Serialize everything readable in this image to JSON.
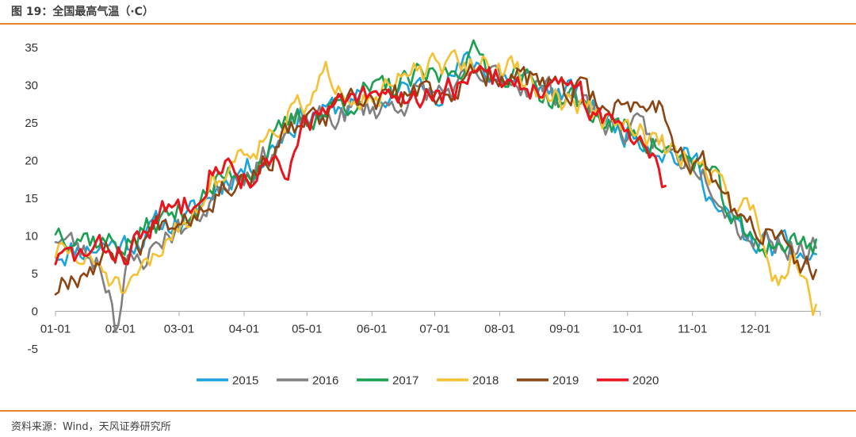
{
  "header": {
    "title": "图 19：全国最高气温（·C）"
  },
  "footer": {
    "source": "资料来源：Wind，天风证券研究所"
  },
  "chart_data": {
    "type": "line",
    "title": "图 19：全国最高气温（·C）",
    "xlabel": "",
    "ylabel": "",
    "x_ticks": [
      "01-01",
      "02-01",
      "03-01",
      "04-01",
      "05-01",
      "06-01",
      "07-01",
      "08-01",
      "09-01",
      "10-01",
      "11-01",
      "12-01"
    ],
    "y_ticks": [
      -5,
      0,
      5,
      10,
      15,
      20,
      25,
      30,
      35
    ],
    "ylim": [
      -5,
      35
    ],
    "xlim_days": [
      0,
      365
    ],
    "month_starts_day": [
      0,
      31,
      59,
      90,
      120,
      151,
      181,
      212,
      243,
      273,
      304,
      334
    ],
    "grid": false,
    "legend_position": "bottom",
    "series": [
      {
        "name": "2015",
        "color": "#1aa3dd",
        "seed": 11,
        "anchors": [
          [
            0,
            8
          ],
          [
            30,
            9
          ],
          [
            59,
            12
          ],
          [
            90,
            19
          ],
          [
            120,
            26
          ],
          [
            151,
            28
          ],
          [
            181,
            30
          ],
          [
            200,
            33
          ],
          [
            212,
            31
          ],
          [
            243,
            29
          ],
          [
            273,
            24
          ],
          [
            304,
            20
          ],
          [
            320,
            12
          ],
          [
            334,
            9
          ],
          [
            364,
            7
          ]
        ]
      },
      {
        "name": "2016",
        "color": "#808080",
        "seed": 23,
        "anchors": [
          [
            0,
            10
          ],
          [
            20,
            7
          ],
          [
            26,
            3
          ],
          [
            29,
            -1
          ],
          [
            35,
            6
          ],
          [
            59,
            11
          ],
          [
            90,
            19
          ],
          [
            120,
            25
          ],
          [
            151,
            27
          ],
          [
            181,
            29
          ],
          [
            212,
            31
          ],
          [
            243,
            29
          ],
          [
            273,
            24
          ],
          [
            304,
            20
          ],
          [
            334,
            10
          ],
          [
            364,
            8
          ]
        ]
      },
      {
        "name": "2017",
        "color": "#1aa050",
        "seed": 37,
        "anchors": [
          [
            0,
            11
          ],
          [
            31,
            9
          ],
          [
            59,
            13
          ],
          [
            90,
            19
          ],
          [
            120,
            26
          ],
          [
            151,
            29
          ],
          [
            181,
            31
          ],
          [
            200,
            34
          ],
          [
            212,
            32
          ],
          [
            243,
            28
          ],
          [
            273,
            24
          ],
          [
            304,
            20
          ],
          [
            334,
            9
          ],
          [
            364,
            9
          ]
        ]
      },
      {
        "name": "2018",
        "color": "#f5c133",
        "seed": 51,
        "anchors": [
          [
            0,
            8
          ],
          [
            20,
            6
          ],
          [
            35,
            2
          ],
          [
            45,
            6
          ],
          [
            59,
            12
          ],
          [
            80,
            18
          ],
          [
            90,
            22
          ],
          [
            120,
            27
          ],
          [
            130,
            31
          ],
          [
            151,
            29
          ],
          [
            181,
            32
          ],
          [
            205,
            33
          ],
          [
            212,
            32
          ],
          [
            243,
            28
          ],
          [
            273,
            24
          ],
          [
            304,
            20
          ],
          [
            334,
            13
          ],
          [
            345,
            4
          ],
          [
            352,
            8
          ],
          [
            358,
            6
          ],
          [
            362,
            1
          ],
          [
            364,
            3
          ]
        ]
      },
      {
        "name": "2019",
        "color": "#8b4513",
        "seed": 67,
        "anchors": [
          [
            0,
            3
          ],
          [
            5,
            5
          ],
          [
            31,
            8
          ],
          [
            59,
            13
          ],
          [
            90,
            18
          ],
          [
            120,
            25
          ],
          [
            151,
            28
          ],
          [
            181,
            29
          ],
          [
            212,
            32
          ],
          [
            243,
            29
          ],
          [
            273,
            27
          ],
          [
            285,
            28
          ],
          [
            304,
            20
          ],
          [
            334,
            11
          ],
          [
            364,
            5
          ]
        ]
      },
      {
        "name": "2020",
        "color": "#e8141e",
        "seed": 83,
        "anchors": [
          [
            0,
            7
          ],
          [
            31,
            8
          ],
          [
            59,
            14
          ],
          [
            78,
            20
          ],
          [
            90,
            18
          ],
          [
            105,
            19
          ],
          [
            110,
            17
          ],
          [
            120,
            26
          ],
          [
            151,
            28
          ],
          [
            181,
            29
          ],
          [
            212,
            31
          ],
          [
            243,
            29
          ],
          [
            273,
            24
          ],
          [
            285,
            22
          ],
          [
            290,
            18
          ],
          [
            292,
            18
          ]
        ]
      }
    ]
  }
}
